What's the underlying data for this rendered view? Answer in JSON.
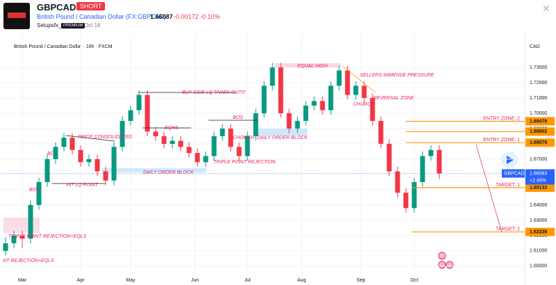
{
  "header": {
    "symbol": "GBPCAD",
    "badge": "SHORT",
    "name": "British Pound / Canadian Dollar (FX:GBPCAD)",
    "price": "1.66087",
    "change": "-0.00172",
    "change_pct": "-0.10%",
    "author": "Setupsfx_",
    "author_badge": "PREMIUM",
    "date": "Oct 16"
  },
  "chart_data": {
    "type": "candlestick",
    "title": "British Pound / Canadian Dollar · 16h · FXCM",
    "y_axis_label": "CAD",
    "up_color": "#089981",
    "down_color": "#f23645",
    "candles": [
      [
        1.61,
        1.619,
        1.607,
        1.615
      ],
      [
        1.615,
        1.623,
        1.612,
        1.62
      ],
      [
        1.62,
        1.623,
        1.612,
        1.618
      ],
      [
        1.618,
        1.643,
        1.615,
        1.64
      ],
      [
        1.64,
        1.658,
        1.637,
        1.655
      ],
      [
        1.655,
        1.673,
        1.652,
        1.67
      ],
      [
        1.67,
        1.681,
        1.667,
        1.678
      ],
      [
        1.678,
        1.687,
        1.675,
        1.684
      ],
      [
        1.684,
        1.687,
        1.673,
        1.676
      ],
      [
        1.676,
        1.679,
        1.665,
        1.668
      ],
      [
        1.668,
        1.673,
        1.665,
        1.67
      ],
      [
        1.67,
        1.673,
        1.659,
        1.662
      ],
      [
        1.662,
        1.665,
        1.653,
        1.656
      ],
      [
        1.656,
        1.681,
        1.653,
        1.678
      ],
      [
        1.678,
        1.698,
        1.675,
        1.695
      ],
      [
        1.695,
        1.705,
        1.692,
        1.702
      ],
      [
        1.702,
        1.715,
        1.699,
        1.712
      ],
      [
        1.712,
        1.715,
        1.685,
        1.688
      ],
      [
        1.688,
        1.691,
        1.682,
        1.685
      ],
      [
        1.685,
        1.688,
        1.677,
        1.68
      ],
      [
        1.68,
        1.685,
        1.677,
        1.682
      ],
      [
        1.682,
        1.685,
        1.675,
        1.678
      ],
      [
        1.678,
        1.681,
        1.671,
        1.674
      ],
      [
        1.674,
        1.677,
        1.665,
        1.668
      ],
      [
        1.668,
        1.675,
        1.665,
        1.672
      ],
      [
        1.672,
        1.688,
        1.669,
        1.685
      ],
      [
        1.685,
        1.693,
        1.682,
        1.69
      ],
      [
        1.69,
        1.693,
        1.675,
        1.678
      ],
      [
        1.678,
        1.681,
        1.669,
        1.672
      ],
      [
        1.672,
        1.688,
        1.669,
        1.685
      ],
      [
        1.685,
        1.703,
        1.682,
        1.7
      ],
      [
        1.7,
        1.721,
        1.697,
        1.718
      ],
      [
        1.718,
        1.733,
        1.715,
        1.73
      ],
      [
        1.73,
        1.733,
        1.697,
        1.7
      ],
      [
        1.7,
        1.703,
        1.687,
        1.69
      ],
      [
        1.69,
        1.698,
        1.687,
        1.695
      ],
      [
        1.695,
        1.708,
        1.692,
        1.705
      ],
      [
        1.705,
        1.711,
        1.702,
        1.708
      ],
      [
        1.708,
        1.711,
        1.699,
        1.702
      ],
      [
        1.702,
        1.721,
        1.699,
        1.718
      ],
      [
        1.718,
        1.731,
        1.715,
        1.728
      ],
      [
        1.728,
        1.731,
        1.709,
        1.712
      ],
      [
        1.712,
        1.721,
        1.709,
        1.718
      ],
      [
        1.718,
        1.721,
        1.707,
        1.71
      ],
      [
        1.71,
        1.713,
        1.692,
        1.695
      ],
      [
        1.695,
        1.698,
        1.677,
        1.68
      ],
      [
        1.68,
        1.683,
        1.659,
        1.662
      ],
      [
        1.662,
        1.665,
        1.645,
        1.648
      ],
      [
        1.648,
        1.651,
        1.635,
        1.638
      ],
      [
        1.638,
        1.658,
        1.635,
        1.655
      ],
      [
        1.655,
        1.675,
        1.652,
        1.672
      ],
      [
        1.672,
        1.679,
        1.669,
        1.676
      ],
      [
        1.676,
        1.679,
        1.657,
        1.66063
      ]
    ],
    "xlim": [
      -0.5,
      62
    ],
    "xticks": [
      {
        "value": 2,
        "label": "Mar"
      },
      {
        "value": 9,
        "label": "Apr"
      },
      {
        "value": 15,
        "label": "May"
      },
      {
        "value": 22.7,
        "label": "Jun"
      },
      {
        "value": 29,
        "label": "Jul"
      },
      {
        "value": 35.5,
        "label": "Aug"
      },
      {
        "value": 42.6,
        "label": "Sep"
      },
      {
        "value": 49,
        "label": "Oct"
      }
    ],
    "ylim": [
      1.5945,
      1.7468
    ],
    "yticks": [
      {
        "value": 1.6,
        "label": "1.60000"
      },
      {
        "value": 1.61,
        "label": "1.61000"
      },
      {
        "value": 1.62,
        "label": "1.62000"
      },
      {
        "value": 1.63,
        "label": "1.63000"
      },
      {
        "value": 1.64,
        "label": "1.64000"
      },
      {
        "value": 1.65,
        "label": "1.65000"
      },
      {
        "value": 1.66,
        "label": "1.66000"
      },
      {
        "value": 1.67,
        "label": "1.67000"
      },
      {
        "value": 1.68,
        "label": "1.68000"
      },
      {
        "value": 1.69,
        "label": "1.69000"
      },
      {
        "value": 1.7,
        "label": "1.70000"
      },
      {
        "value": 1.71,
        "label": "1.71000"
      },
      {
        "value": 1.72,
        "label": "1.72000"
      },
      {
        "value": 1.73,
        "label": "1.73000"
      }
    ],
    "last": {
      "symbol": "GBPCAD",
      "value": 1.66063,
      "change": "+2.46%"
    },
    "levels": [
      {
        "name": "ENTRY ZONE: 2",
        "value": 1.69476
      },
      {
        "name": "",
        "value": 1.68802
      },
      {
        "name": "ENTRY ZONE: 1",
        "value": 1.68079
      },
      {
        "name": "TARGET: 1",
        "value": 1.65133
      },
      {
        "name": "TARGET: 2",
        "value": 1.62238
      }
    ],
    "annotations": [
      "EQUAL HIGH",
      "SELLERS IMMENSE PRESSURE",
      "REVERSAL ZONE",
      "CHURCH",
      "BUY SIDE LQ TAKEN OUT!!!",
      "BOS",
      "EQHS",
      "CHORCH",
      "DAILY ORDER BLOCK",
      "DAILY ORDER BLOCK",
      "TRIPLE POINT REJECTION",
      "PRICE CONSOLIDATED",
      "BO",
      "BOS",
      "INT LQ POINT",
      "TRIPLE POINT REJECTION+EQLS",
      "NT REJECTION+EQLS"
    ]
  }
}
